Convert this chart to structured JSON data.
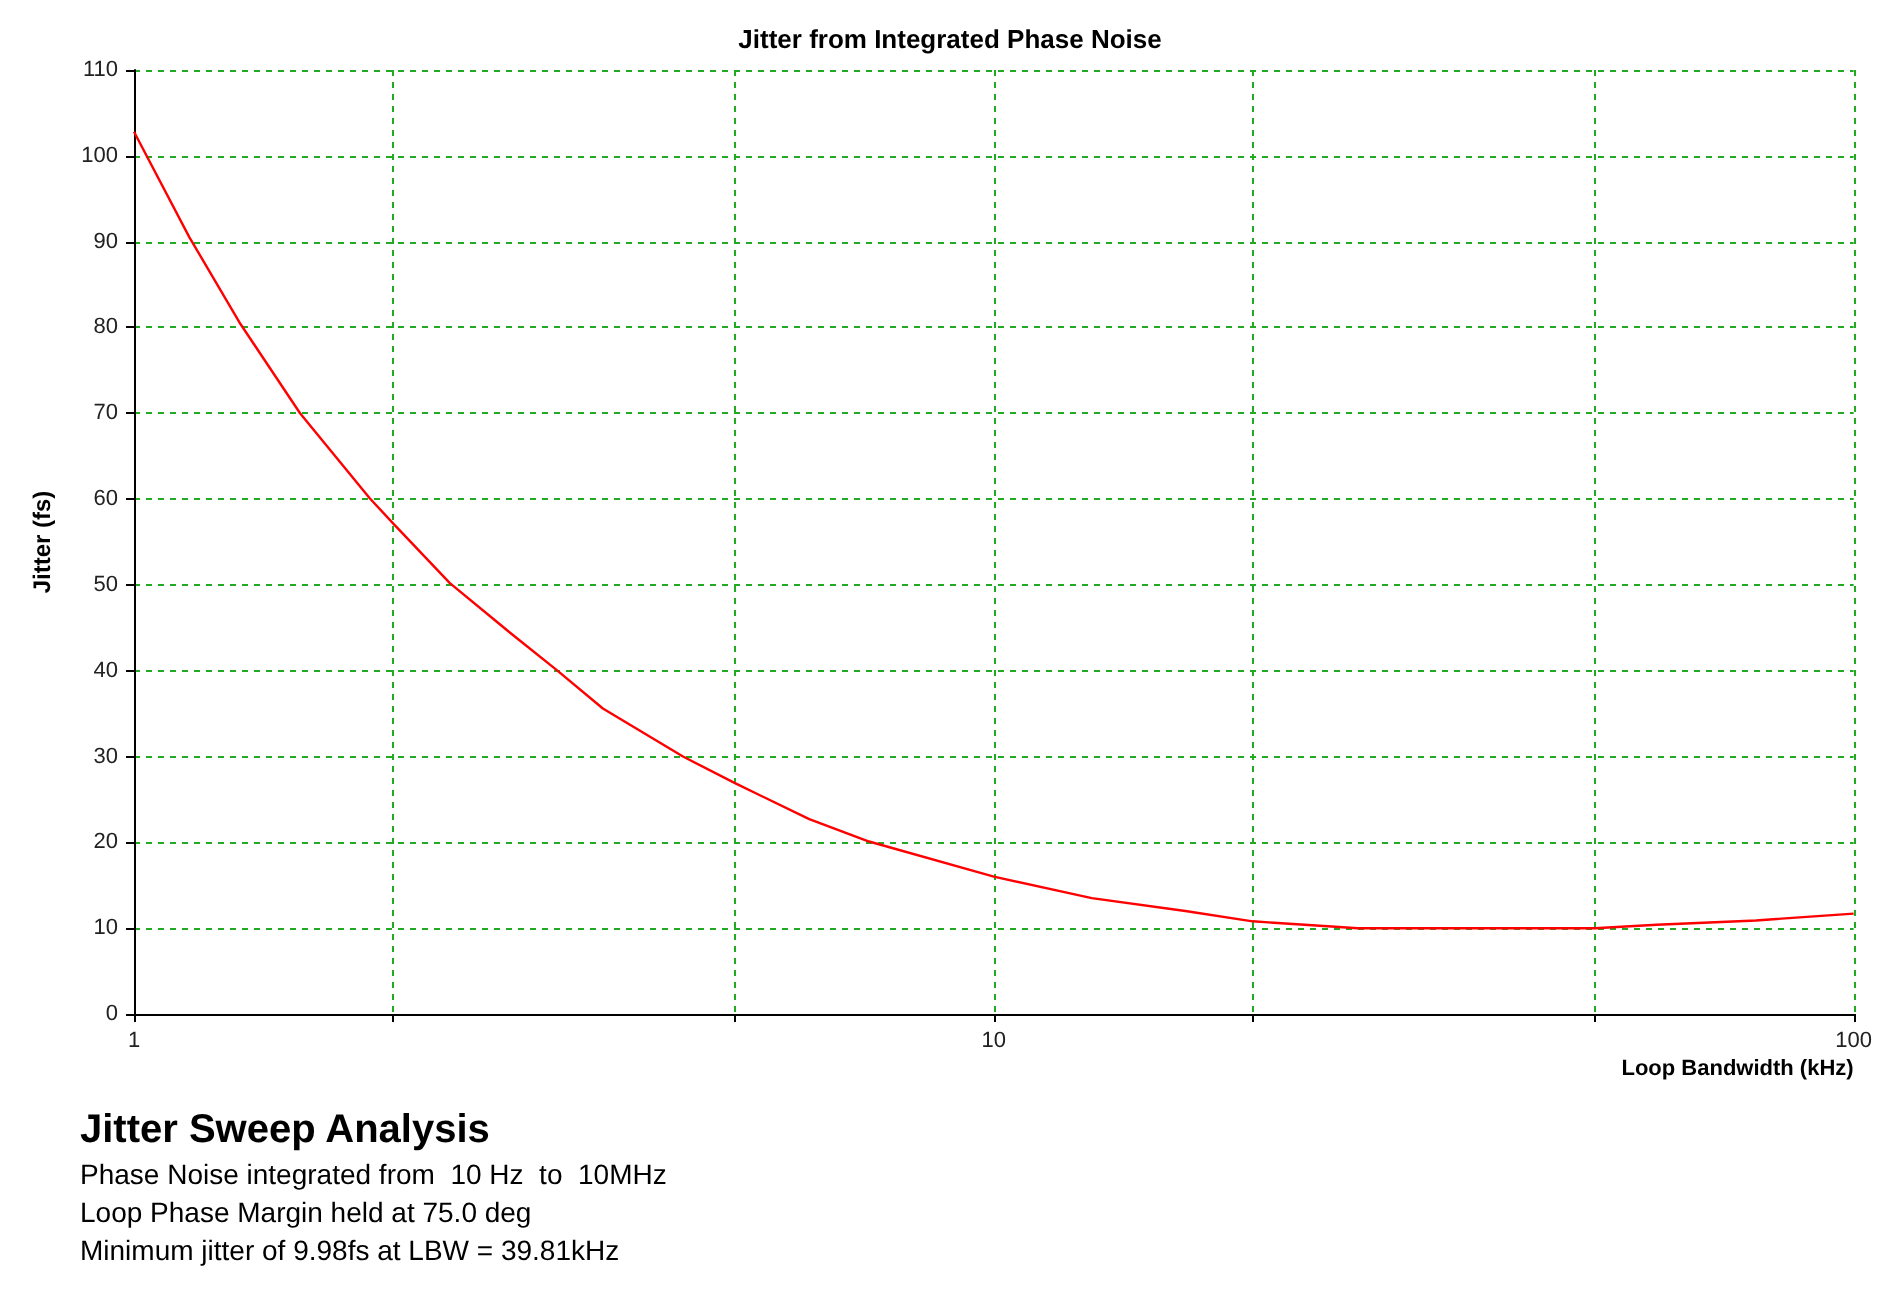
{
  "chart_data": {
    "type": "line",
    "title": "Jitter from Integrated Phase Noise",
    "xlabel": "Loop Bandwidth (kHz)",
    "ylabel": "Jitter (fs)",
    "log": "x",
    "grid": true,
    "marker": "none",
    "xlim": [
      1,
      100
    ],
    "xticks": [
      1,
      {
        "value": 2,
        "label": null
      },
      {
        "value": 5,
        "label": null
      },
      10,
      {
        "value": 20,
        "label": null
      },
      {
        "value": 50,
        "label": null
      },
      100
    ],
    "ylim": [
      0,
      110
    ],
    "yticks": [
      0,
      10,
      20,
      30,
      40,
      50,
      60,
      70,
      80,
      90,
      100,
      110
    ],
    "series": [
      {
        "color": "#ff0000",
        "x": [
          1,
          1.16,
          1.33,
          1.56,
          1.88,
          2,
          2.33,
          2.74,
          3.1,
          3.51,
          4.35,
          5,
          6.1,
          7.16,
          10,
          13,
          16.7,
          20,
          24.7,
          26.5,
          50,
          59,
          77,
          100
        ],
        "values": [
          102.8,
          90.5,
          80.4,
          70.0,
          60.1,
          57.2,
          50.2,
          44.4,
          40.1,
          35.6,
          30.0,
          26.9,
          22.7,
          20.1,
          16.0,
          13.5,
          12.0,
          10.8,
          10.2,
          10.0,
          10.0,
          10.4,
          10.9,
          11.7
        ]
      }
    ],
    "annotations": [
      "Jitter Sweep Analysis",
      "Phase Noise integrated from  10 Hz  to  10MHz",
      "Loop Phase Margin held at 75.0 deg",
      "Minimum jitter of 9.98fs at LBW = 39.81kHz"
    ]
  }
}
